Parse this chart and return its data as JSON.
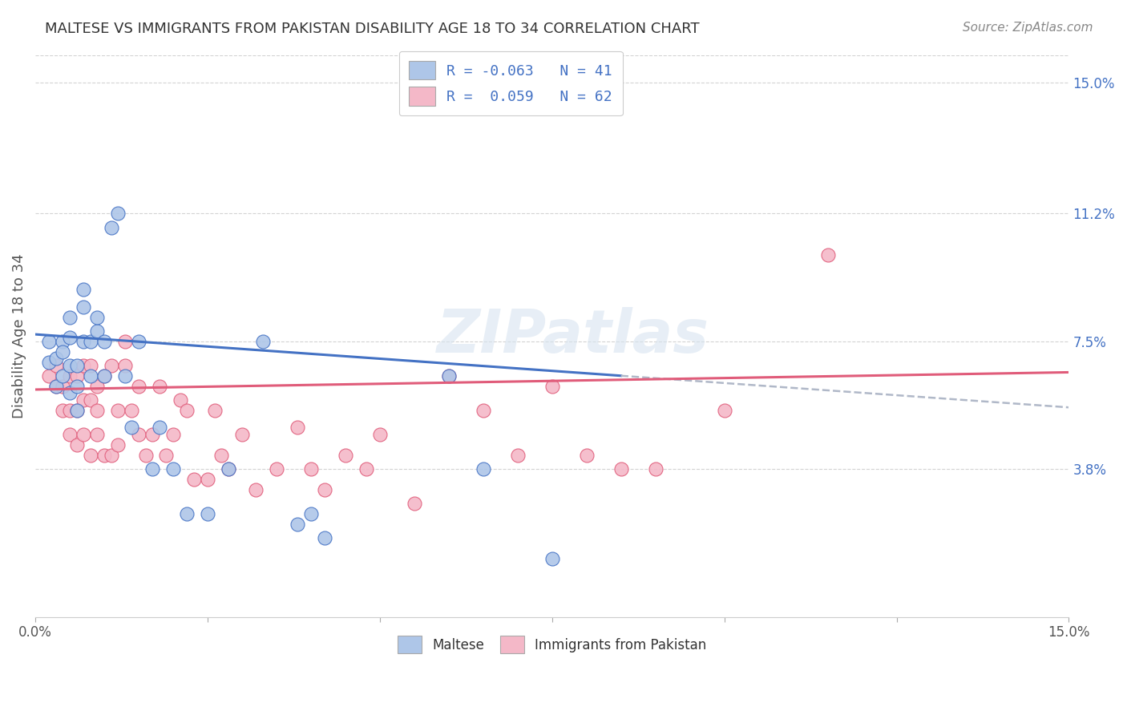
{
  "title": "MALTESE VS IMMIGRANTS FROM PAKISTAN DISABILITY AGE 18 TO 34 CORRELATION CHART",
  "source": "Source: ZipAtlas.com",
  "ylabel": "Disability Age 18 to 34",
  "xmin": 0.0,
  "xmax": 0.15,
  "ymin": -0.005,
  "ymax": 0.158,
  "yticks": [
    0.038,
    0.075,
    0.112,
    0.15
  ],
  "right_ytick_labels": [
    "3.8%",
    "7.5%",
    "11.2%",
    "15.0%"
  ],
  "maltese_color": "#aec6e8",
  "pakistan_color": "#f4b8c8",
  "maltese_line_color": "#4472c4",
  "pakistan_line_color": "#e05c7a",
  "background_color": "#ffffff",
  "grid_color": "#d3d3d3",
  "watermark": "ZIPatlas",
  "legend_entries": [
    {
      "label_r": "R = -0.063",
      "label_n": "N = 41",
      "color": "#aec6e8"
    },
    {
      "label_r": "R =  0.059",
      "label_n": "N = 62",
      "color": "#f4b8c8"
    }
  ],
  "maltese_x": [
    0.002,
    0.002,
    0.003,
    0.003,
    0.004,
    0.004,
    0.004,
    0.005,
    0.005,
    0.005,
    0.005,
    0.006,
    0.006,
    0.006,
    0.007,
    0.007,
    0.007,
    0.008,
    0.008,
    0.009,
    0.009,
    0.01,
    0.01,
    0.011,
    0.012,
    0.013,
    0.014,
    0.015,
    0.017,
    0.018,
    0.02,
    0.022,
    0.025,
    0.028,
    0.033,
    0.038,
    0.04,
    0.042,
    0.06,
    0.065,
    0.075
  ],
  "maltese_y": [
    0.075,
    0.069,
    0.062,
    0.07,
    0.075,
    0.065,
    0.072,
    0.06,
    0.068,
    0.076,
    0.082,
    0.055,
    0.062,
    0.068,
    0.075,
    0.085,
    0.09,
    0.065,
    0.075,
    0.078,
    0.082,
    0.065,
    0.075,
    0.108,
    0.112,
    0.065,
    0.05,
    0.075,
    0.038,
    0.05,
    0.038,
    0.025,
    0.025,
    0.038,
    0.075,
    0.022,
    0.025,
    0.018,
    0.065,
    0.038,
    0.012
  ],
  "pakistan_x": [
    0.002,
    0.003,
    0.003,
    0.004,
    0.004,
    0.005,
    0.005,
    0.005,
    0.006,
    0.006,
    0.006,
    0.007,
    0.007,
    0.007,
    0.008,
    0.008,
    0.008,
    0.009,
    0.009,
    0.009,
    0.01,
    0.01,
    0.011,
    0.011,
    0.012,
    0.012,
    0.013,
    0.013,
    0.014,
    0.015,
    0.015,
    0.016,
    0.017,
    0.018,
    0.019,
    0.02,
    0.021,
    0.022,
    0.023,
    0.025,
    0.026,
    0.027,
    0.028,
    0.03,
    0.032,
    0.035,
    0.038,
    0.04,
    0.042,
    0.045,
    0.048,
    0.05,
    0.055,
    0.06,
    0.065,
    0.07,
    0.075,
    0.08,
    0.085,
    0.09,
    0.1,
    0.115
  ],
  "pakistan_y": [
    0.065,
    0.062,
    0.068,
    0.055,
    0.062,
    0.048,
    0.055,
    0.065,
    0.045,
    0.055,
    0.065,
    0.048,
    0.058,
    0.068,
    0.042,
    0.058,
    0.068,
    0.048,
    0.055,
    0.062,
    0.042,
    0.065,
    0.042,
    0.068,
    0.045,
    0.055,
    0.068,
    0.075,
    0.055,
    0.048,
    0.062,
    0.042,
    0.048,
    0.062,
    0.042,
    0.048,
    0.058,
    0.055,
    0.035,
    0.035,
    0.055,
    0.042,
    0.038,
    0.048,
    0.032,
    0.038,
    0.05,
    0.038,
    0.032,
    0.042,
    0.038,
    0.048,
    0.028,
    0.065,
    0.055,
    0.042,
    0.062,
    0.042,
    0.038,
    0.038,
    0.055,
    0.1
  ],
  "blue_line_x_start": 0.0,
  "blue_line_x_solid_end": 0.085,
  "blue_line_x_dash_end": 0.15,
  "blue_line_y_start": 0.077,
  "blue_line_y_solid_end": 0.065,
  "blue_line_y_dash_end": 0.055,
  "pink_line_x_start": 0.0,
  "pink_line_x_end": 0.15,
  "pink_line_y_start": 0.061,
  "pink_line_y_end": 0.066
}
